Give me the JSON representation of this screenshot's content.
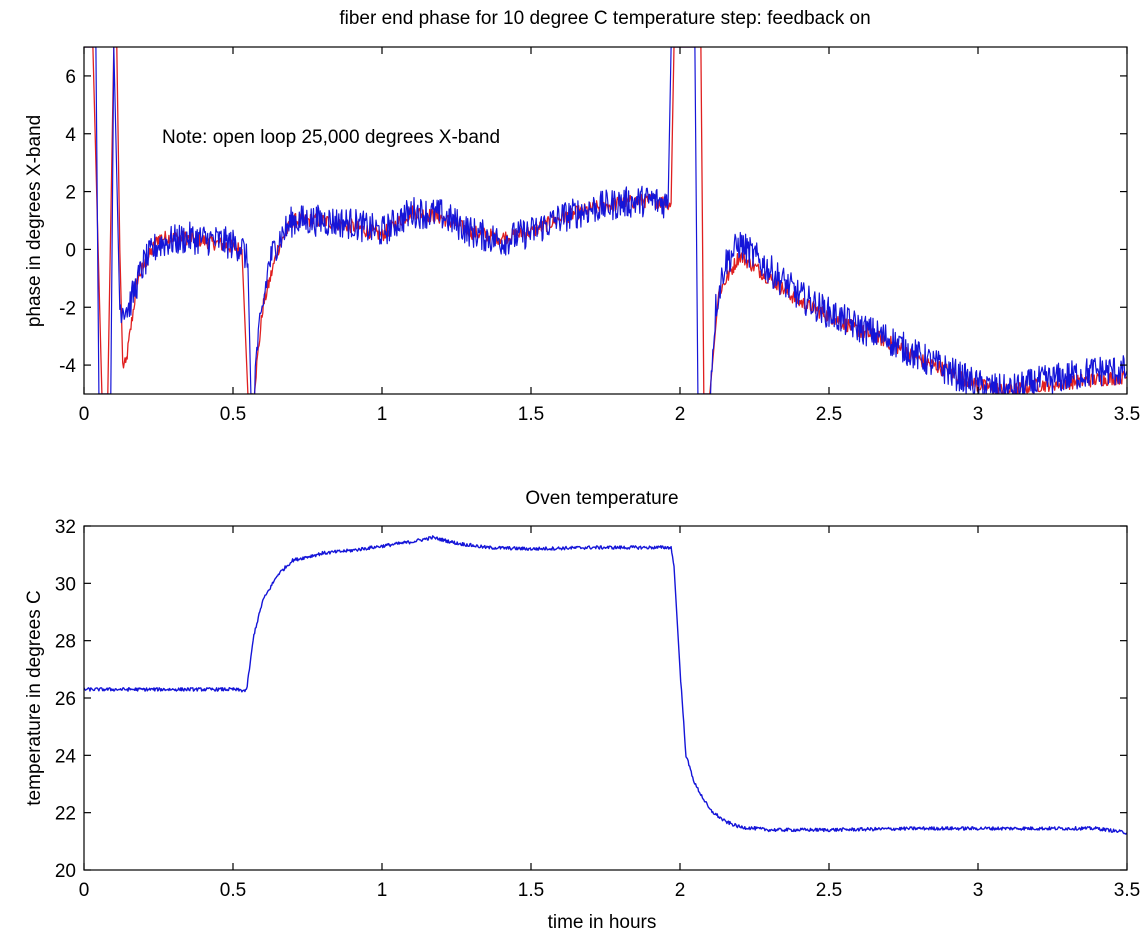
{
  "colors": {
    "blue": "#1515d8",
    "red": "#e02020",
    "axis": "#000000"
  },
  "chart_data": [
    {
      "type": "line",
      "title": "fiber end phase for 10 degree C temperature step: feedback on",
      "xlabel": "",
      "ylabel": "phase in degrees X-band",
      "xlim": [
        0,
        3.5
      ],
      "ylim": [
        -5,
        7
      ],
      "xticks": [
        0,
        0.5,
        1,
        1.5,
        2,
        2.5,
        3,
        3.5
      ],
      "xtick_labels": [
        "0",
        "0.5",
        "1",
        "1.5",
        "2",
        "2.5",
        "3",
        "3.5"
      ],
      "yticks": [
        -4,
        -2,
        0,
        2,
        4,
        6
      ],
      "ytick_labels": [
        "-4",
        "-2",
        "0",
        "2",
        "4",
        "6"
      ],
      "grid": false,
      "annotations": [
        {
          "text": "Note: open loop 25,000 degrees X-band",
          "x": 0.27,
          "y": 4
        }
      ],
      "series": [
        {
          "color": "red",
          "noise": 0.25,
          "x": [
            0,
            0.03,
            0.06,
            0.08,
            0.1,
            0.11,
            0.12,
            0.13,
            0.14,
            0.18,
            0.25,
            0.35,
            0.45,
            0.53,
            0.55,
            0.57,
            0.6,
            0.65,
            0.7,
            0.8,
            0.9,
            1.0,
            1.1,
            1.2,
            1.3,
            1.4,
            1.5,
            1.6,
            1.7,
            1.8,
            1.9,
            1.97,
            1.98,
            1.99,
            2.02,
            2.05,
            2.07,
            2.08,
            2.09,
            2.1,
            2.13,
            2.2,
            2.3,
            2.4,
            2.5,
            2.6,
            2.7,
            2.8,
            2.9,
            3.0,
            3.1,
            3.2,
            3.3,
            3.4,
            3.5
          ],
          "y": [
            7,
            7,
            -5,
            -5,
            7,
            7,
            0,
            -4,
            -4,
            -1,
            0.4,
            0.4,
            0.2,
            0,
            -5,
            -5,
            -2,
            0,
            1,
            1,
            0.8,
            0.5,
            1.3,
            1.1,
            0.6,
            0.4,
            0.6,
            1.1,
            1.4,
            1.6,
            1.7,
            1.6,
            7,
            7,
            7,
            7,
            7,
            -5,
            -5,
            -5,
            -1.5,
            -0.2,
            -1,
            -1.8,
            -2.3,
            -2.8,
            -3.2,
            -3.8,
            -4.2,
            -4.7,
            -4.9,
            -4.7,
            -4.6,
            -4.5,
            -4.4
          ]
        },
        {
          "color": "blue",
          "noise": 0.55,
          "x": [
            0,
            0.04,
            0.05,
            0.07,
            0.09,
            0.1,
            0.12,
            0.15,
            0.2,
            0.25,
            0.35,
            0.45,
            0.53,
            0.55,
            0.56,
            0.57,
            0.58,
            0.6,
            0.62,
            0.65,
            0.7,
            0.8,
            0.9,
            1.0,
            1.1,
            1.2,
            1.3,
            1.4,
            1.5,
            1.6,
            1.7,
            1.8,
            1.9,
            1.96,
            1.97,
            1.98,
            2.0,
            2.05,
            2.06,
            2.08,
            2.1,
            2.12,
            2.15,
            2.2,
            2.3,
            2.4,
            2.5,
            2.6,
            2.7,
            2.8,
            2.9,
            3.0,
            3.1,
            3.2,
            3.3,
            3.4,
            3.5
          ],
          "y": [
            7,
            7,
            -5,
            -5,
            -5,
            7,
            -2,
            -2,
            -0.5,
            0.2,
            0.4,
            0.3,
            0.1,
            -0.5,
            -5,
            -5,
            -3.5,
            -2,
            -0.5,
            0.3,
            1,
            1,
            0.9,
            0.6,
            1.3,
            1.2,
            0.6,
            0.3,
            0.6,
            1.1,
            1.4,
            1.6,
            1.7,
            1.6,
            7,
            7,
            7,
            7,
            -5,
            -5,
            -5,
            -2,
            -0.5,
            0.2,
            -0.7,
            -1.6,
            -2.2,
            -2.7,
            -3.1,
            -3.7,
            -4.2,
            -4.7,
            -4.9,
            -4.6,
            -4.4,
            -4.2,
            -4.2
          ]
        }
      ]
    },
    {
      "type": "line",
      "title": "Oven temperature",
      "xlabel": "time in hours",
      "ylabel": "temperature in degrees C",
      "xlim": [
        0,
        3.5
      ],
      "ylim": [
        20,
        32
      ],
      "xticks": [
        0,
        0.5,
        1,
        1.5,
        2,
        2.5,
        3,
        3.5
      ],
      "xtick_labels": [
        "0",
        "0.5",
        "1",
        "1.5",
        "2",
        "2.5",
        "3",
        "3.5"
      ],
      "yticks": [
        20,
        22,
        24,
        26,
        28,
        30,
        32
      ],
      "ytick_labels": [
        "20",
        "22",
        "24",
        "26",
        "28",
        "30",
        "32"
      ],
      "grid": false,
      "series": [
        {
          "color": "blue",
          "noise": 0.06,
          "x": [
            0,
            0.25,
            0.5,
            0.545,
            0.555,
            0.57,
            0.6,
            0.65,
            0.7,
            0.8,
            0.9,
            1.0,
            1.1,
            1.17,
            1.25,
            1.35,
            1.5,
            1.7,
            1.9,
            1.97,
            1.98,
            2.0,
            2.02,
            2.05,
            2.1,
            2.15,
            2.2,
            2.3,
            2.5,
            2.8,
            3.0,
            3.2,
            3.4,
            3.5
          ],
          "y": [
            26.3,
            26.3,
            26.3,
            26.25,
            27.0,
            28.2,
            29.4,
            30.3,
            30.8,
            31.05,
            31.15,
            31.3,
            31.45,
            31.6,
            31.4,
            31.25,
            31.2,
            31.25,
            31.25,
            31.25,
            30.6,
            27.0,
            24.0,
            23.0,
            22.1,
            21.7,
            21.5,
            21.4,
            21.4,
            21.45,
            21.45,
            21.45,
            21.45,
            21.3
          ]
        }
      ]
    }
  ]
}
